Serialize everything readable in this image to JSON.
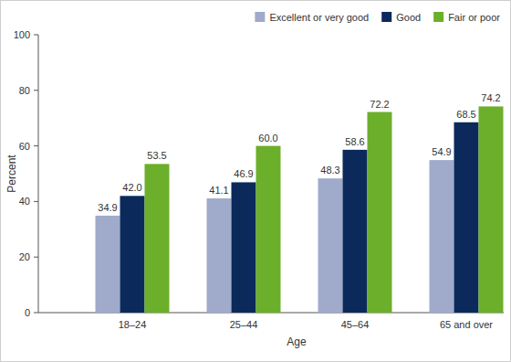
{
  "chart_data": {
    "type": "bar",
    "categories": [
      "18–24",
      "25–44",
      "45–64",
      "65 and over"
    ],
    "series": [
      {
        "name": "Excellent or very good",
        "color": "#a0aacb",
        "values": [
          34.9,
          41.1,
          48.3,
          54.9
        ],
        "value_labels": [
          "34.9",
          "41.1",
          "48.3",
          "54.9"
        ]
      },
      {
        "name": "Good",
        "color": "#0b2a5b",
        "values": [
          42.0,
          46.9,
          58.6,
          68.5
        ],
        "value_labels": [
          "42.0",
          "46.9",
          "58.6",
          "68.5"
        ]
      },
      {
        "name": "Fair or poor",
        "color": "#6caf2a",
        "values": [
          53.5,
          60.0,
          72.2,
          74.2
        ],
        "value_labels": [
          "53.5",
          "60.0",
          "72.2",
          "74.2"
        ]
      }
    ],
    "x_label": "Age",
    "y_label": "Percent",
    "ylim": [
      0,
      100
    ],
    "yticks": [
      0,
      20,
      40,
      60,
      80,
      100
    ],
    "grid": false,
    "legend": "top-right",
    "data_labels": true
  }
}
